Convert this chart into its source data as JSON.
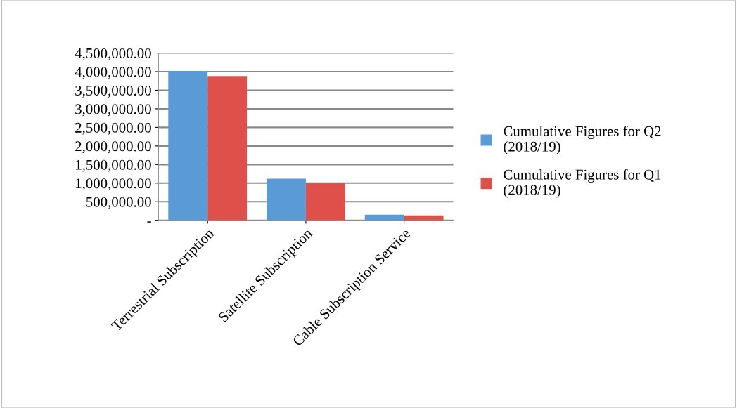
{
  "chart_data": {
    "type": "bar",
    "categories": [
      "Terrestrial Subscription",
      "Satellite Subscription",
      "Cable Subscription Service"
    ],
    "series": [
      {
        "name": "Cumulative Figures for Q2 (2018/19)",
        "color": "#5b9bd5",
        "values": [
          4020000,
          1120000,
          150000
        ]
      },
      {
        "name": "Cumulative Figures for Q1 (2018/19)",
        "color": "#e0504a",
        "values": [
          3880000,
          1000000,
          130000
        ]
      }
    ],
    "ylim": [
      0,
      4500000
    ],
    "yticks": [
      {
        "value": 0,
        "label": "-"
      },
      {
        "value": 500000,
        "label": "500,000.00"
      },
      {
        "value": 1000000,
        "label": "1,000,000.00"
      },
      {
        "value": 1500000,
        "label": "1,500,000.00"
      },
      {
        "value": 2000000,
        "label": "2,000,000.00"
      },
      {
        "value": 2500000,
        "label": "2,500,000.00"
      },
      {
        "value": 3000000,
        "label": "3,000,000.00"
      },
      {
        "value": 3500000,
        "label": "3,500,000.00"
      },
      {
        "value": 4000000,
        "label": "4,000,000.00"
      },
      {
        "value": 4500000,
        "label": "4,500,000.00"
      }
    ],
    "grid": "y",
    "legend": "right"
  }
}
